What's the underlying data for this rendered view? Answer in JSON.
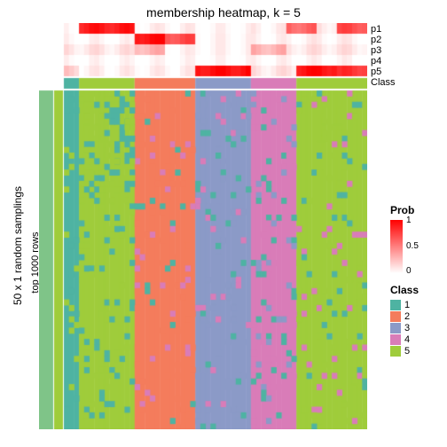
{
  "title": "membership heatmap, k = 5",
  "yAxisOuter": "50 x 1 random samplings",
  "yAxisInner": "top 1000 rows",
  "rowLabels": [
    "p1",
    "p2",
    "p3",
    "p4",
    "p5",
    "Class"
  ],
  "legendProb": {
    "title": "Prob",
    "ticks": [
      "1",
      "0.5",
      "0"
    ],
    "colorLow": "#ffffff",
    "colorHigh": "#ff0000"
  },
  "legendClass": {
    "title": "Class",
    "items": [
      {
        "label": "1",
        "color": "#4eb3a2"
      },
      {
        "label": "2",
        "color": "#f47c5c"
      },
      {
        "label": "3",
        "color": "#8b9ac7"
      },
      {
        "label": "4",
        "color": "#d97cb8"
      },
      {
        "label": "5",
        "color": "#9fcc3b"
      }
    ]
  },
  "layout": {
    "cols": 60,
    "pRows": 5,
    "pRowHeight": 12,
    "classRowHeight": 12,
    "mainHeight": 380,
    "gap": 2,
    "leftBarWidth": 16,
    "innerBarWidth": 10
  },
  "colors": {
    "leftBar": "#7fc488",
    "innerBar": "#9fcc3b",
    "white": "#ffffff"
  },
  "classColors": [
    "#4eb3a2",
    "#f47c5c",
    "#8b9ac7",
    "#d97cb8",
    "#9fcc3b"
  ],
  "classMapSegments": [
    {
      "start": 0,
      "end": 3,
      "class": 0
    },
    {
      "start": 3,
      "end": 14,
      "class": 4
    },
    {
      "start": 14,
      "end": 26,
      "class": 1
    },
    {
      "start": 26,
      "end": 37,
      "class": 2
    },
    {
      "start": 37,
      "end": 46,
      "class": 3
    },
    {
      "start": 46,
      "end": 60,
      "class": 4
    }
  ],
  "pMatrixSegments": {
    "p1": [
      {
        "start": 0,
        "end": 3,
        "v": 0
      },
      {
        "start": 3,
        "end": 14,
        "v": 0.9
      },
      {
        "start": 14,
        "end": 26,
        "v": 0.05
      },
      {
        "start": 26,
        "end": 37,
        "v": 0.02
      },
      {
        "start": 37,
        "end": 44,
        "v": 0.05
      },
      {
        "start": 44,
        "end": 50,
        "v": 0.6
      },
      {
        "start": 50,
        "end": 54,
        "v": 0.1
      },
      {
        "start": 54,
        "end": 60,
        "v": 0.7
      }
    ],
    "p2": [
      {
        "start": 0,
        "end": 14,
        "v": 0.02
      },
      {
        "start": 14,
        "end": 20,
        "v": 0.95
      },
      {
        "start": 20,
        "end": 26,
        "v": 0.7
      },
      {
        "start": 26,
        "end": 46,
        "v": 0.03
      },
      {
        "start": 46,
        "end": 60,
        "v": 0.05
      }
    ],
    "p3": [
      {
        "start": 0,
        "end": 3,
        "v": 0.1
      },
      {
        "start": 3,
        "end": 14,
        "v": 0.1
      },
      {
        "start": 14,
        "end": 20,
        "v": 0.3
      },
      {
        "start": 20,
        "end": 37,
        "v": 0.03
      },
      {
        "start": 37,
        "end": 44,
        "v": 0.3
      },
      {
        "start": 44,
        "end": 60,
        "v": 0.1
      }
    ],
    "p4": [
      {
        "start": 0,
        "end": 37,
        "v": 0.01
      },
      {
        "start": 37,
        "end": 46,
        "v": 0.02
      },
      {
        "start": 46,
        "end": 60,
        "v": 0.02
      }
    ],
    "p5": [
      {
        "start": 0,
        "end": 3,
        "v": 0.2
      },
      {
        "start": 3,
        "end": 14,
        "v": 0.05
      },
      {
        "start": 14,
        "end": 26,
        "v": 0.05
      },
      {
        "start": 26,
        "end": 37,
        "v": 0.95
      },
      {
        "start": 37,
        "end": 46,
        "v": 0.1
      },
      {
        "start": 46,
        "end": 54,
        "v": 0.95
      },
      {
        "start": 54,
        "end": 60,
        "v": 0.8
      }
    ]
  },
  "mainSeed": 12345,
  "mainNoise": 0.15
}
